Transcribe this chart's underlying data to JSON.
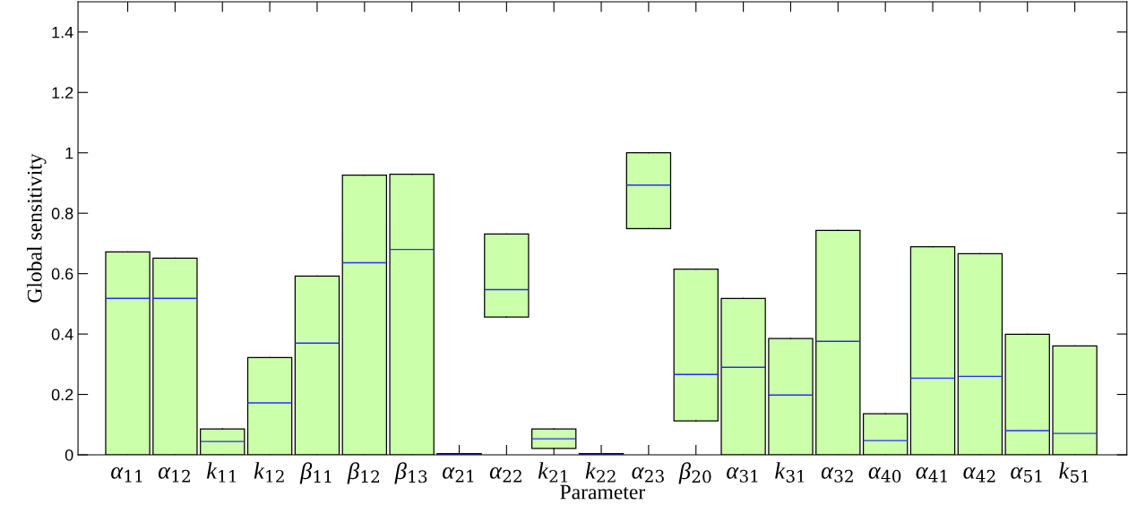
{
  "chart_data": {
    "type": "box",
    "xlabel": "Parameter",
    "ylabel": "Global sensitivity",
    "categories": [
      "α$_{11}$",
      "α$_{12}$",
      "k$_{11}$",
      "k$_{12}$",
      "β$_{11}$",
      "β$_{12}$",
      "β$_{13}$",
      "α$_{21}$",
      "α$_{22}$",
      "k$_{21}$",
      "k$_{22}$",
      "α$_{23}$",
      "β$_{20}$",
      "α$_{31}$",
      "k$_{31}$",
      "α$_{32}$",
      "α$_{40}$",
      "α$_{41}$",
      "α$_{42}$",
      "α$_{51}$",
      "k$_{51}$"
    ],
    "series": [
      {
        "color": "#ccffaa",
        "boxes": [
          {
            "low": 0,
            "q1": 0,
            "median": 0.518,
            "q3": 0.672,
            "high": 0.672
          },
          {
            "low": 0,
            "q1": 0,
            "median": 0.518,
            "q3": 0.651,
            "high": 0.651
          },
          {
            "low": 0,
            "q1": 0,
            "median": 0.044,
            "q3": 0.086,
            "high": 0.086
          },
          {
            "low": 0,
            "q1": 0,
            "median": 0.172,
            "q3": 0.322,
            "high": 0.322
          },
          {
            "low": 0,
            "q1": 0,
            "median": 0.37,
            "q3": 0.592,
            "high": 0.592
          },
          {
            "low": 0,
            "q1": 0,
            "median": 0.636,
            "q3": 0.926,
            "high": 0.926
          },
          {
            "low": 0,
            "q1": 0,
            "median": 0.68,
            "q3": 0.929,
            "high": 0.929
          },
          {
            "low": 0,
            "q1": 0,
            "median": 0.002,
            "q3": 0.004,
            "high": 0.004
          },
          {
            "low": 0.456,
            "q1": 0.456,
            "median": 0.547,
            "q3": 0.731,
            "high": 0.731
          },
          {
            "low": 0.021,
            "q1": 0.021,
            "median": 0.053,
            "q3": 0.086,
            "high": 0.086
          },
          {
            "low": 0,
            "q1": 0,
            "median": 0.002,
            "q3": 0.004,
            "high": 0.004
          },
          {
            "low": 0.749,
            "q1": 0.749,
            "median": 0.893,
            "q3": 1.0,
            "high": 1.0
          },
          {
            "low": 0.112,
            "q1": 0.112,
            "median": 0.266,
            "q3": 0.615,
            "high": 0.615
          },
          {
            "low": 0,
            "q1": 0,
            "median": 0.29,
            "q3": 0.518,
            "high": 0.518
          },
          {
            "low": 0,
            "q1": 0,
            "median": 0.198,
            "q3": 0.385,
            "high": 0.385
          },
          {
            "low": 0,
            "q1": 0,
            "median": 0.376,
            "q3": 0.743,
            "high": 0.743
          },
          {
            "low": 0,
            "q1": 0,
            "median": 0.047,
            "q3": 0.136,
            "high": 0.136
          },
          {
            "low": 0,
            "q1": 0,
            "median": 0.254,
            "q3": 0.689,
            "high": 0.689
          },
          {
            "low": 0,
            "q1": 0,
            "median": 0.26,
            "q3": 0.666,
            "high": 0.666
          },
          {
            "low": 0,
            "q1": 0,
            "median": 0.08,
            "q3": 0.399,
            "high": 0.399
          },
          {
            "low": 0,
            "q1": 0,
            "median": 0.071,
            "q3": 0.361,
            "high": 0.361
          }
        ]
      }
    ],
    "ylim": [
      0,
      1.5
    ],
    "yticks": [
      0,
      0.2,
      0.4,
      0.6,
      0.8,
      1,
      1.2,
      1.4
    ],
    "grid": false,
    "legend": false
  }
}
